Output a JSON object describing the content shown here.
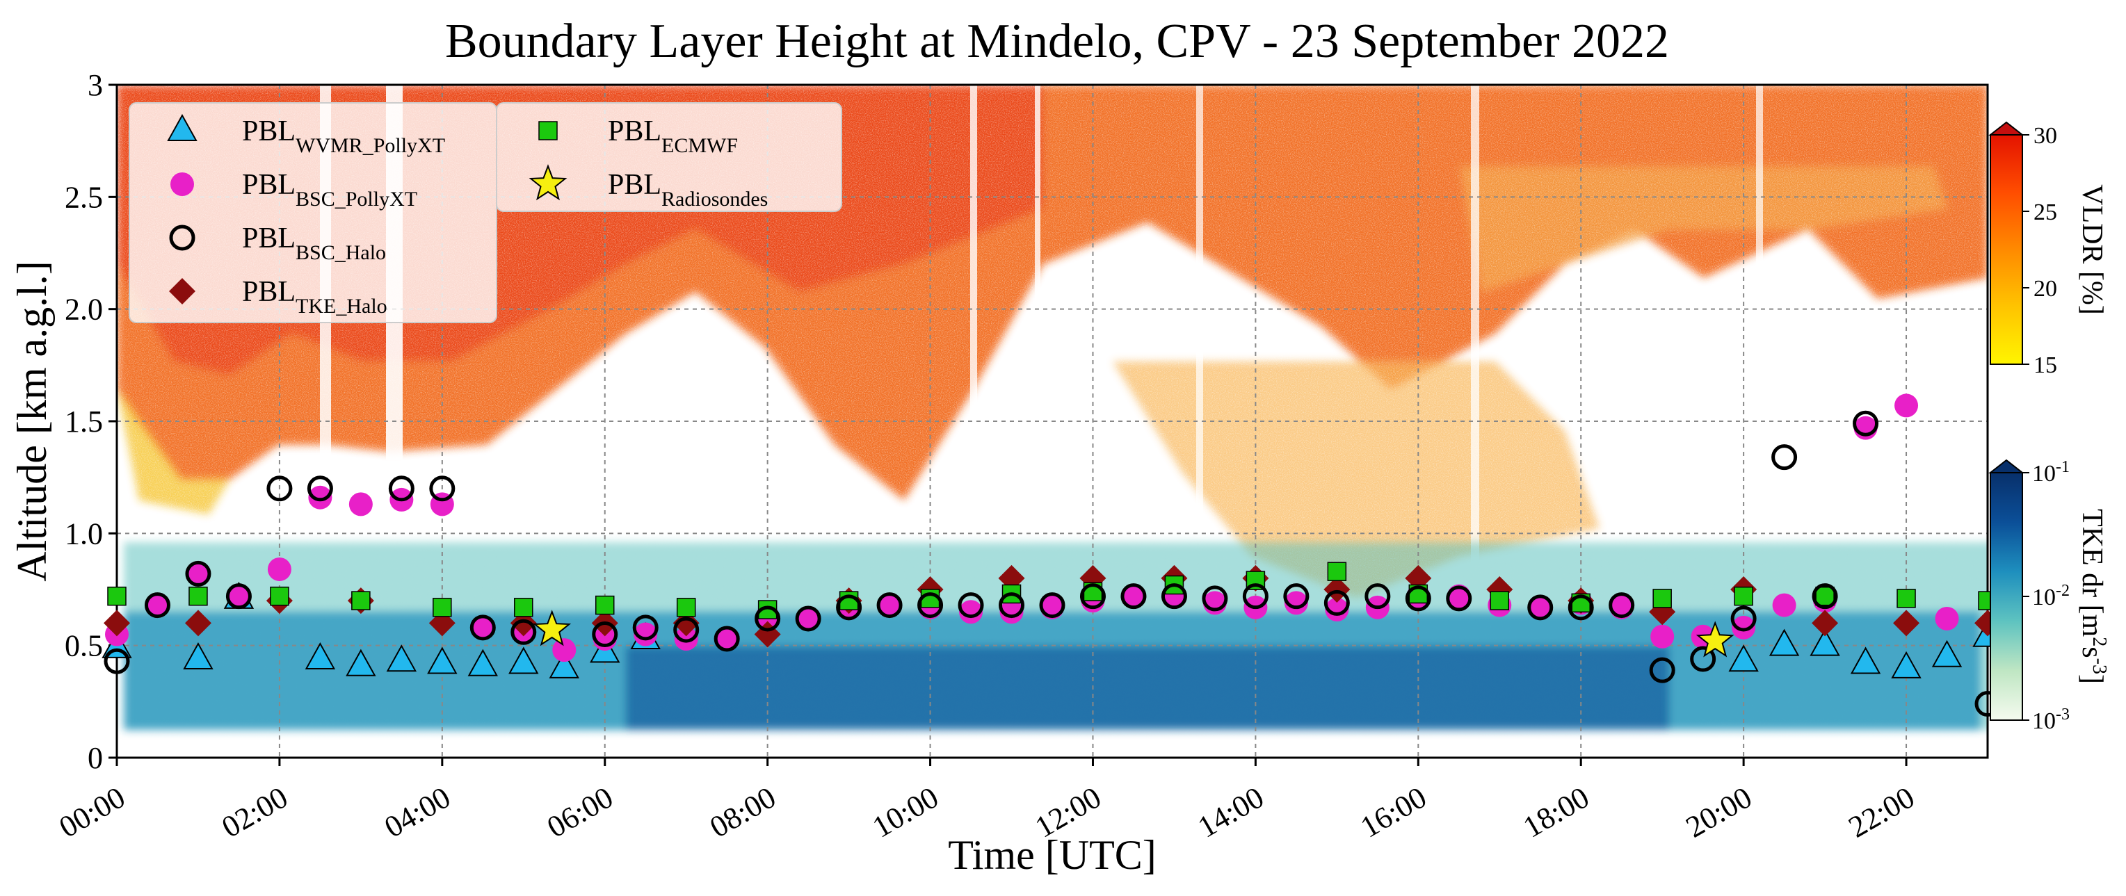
{
  "chart_data": {
    "type": "scatter",
    "title": "Boundary Layer Height at Mindelo, CPV - 23 September 2022",
    "xlabel": "Time [UTC]",
    "ylabel": "Altitude [km a.g.l.]",
    "xlim": [
      0,
      23
    ],
    "ylim": [
      0,
      3
    ],
    "grid": true,
    "x_ticks": [
      {
        "v": 0,
        "label": "00:00"
      },
      {
        "v": 2,
        "label": "02:00"
      },
      {
        "v": 4,
        "label": "04:00"
      },
      {
        "v": 6,
        "label": "06:00"
      },
      {
        "v": 8,
        "label": "08:00"
      },
      {
        "v": 10,
        "label": "10:00"
      },
      {
        "v": 12,
        "label": "12:00"
      },
      {
        "v": 14,
        "label": "14:00"
      },
      {
        "v": 16,
        "label": "16:00"
      },
      {
        "v": 18,
        "label": "18:00"
      },
      {
        "v": 20,
        "label": "20:00"
      },
      {
        "v": 22,
        "label": "22:00"
      }
    ],
    "y_ticks": [
      {
        "v": 0,
        "label": "0"
      },
      {
        "v": 0.5,
        "label": "0.5"
      },
      {
        "v": 1.0,
        "label": "1.0"
      },
      {
        "v": 1.5,
        "label": "1.5"
      },
      {
        "v": 2.0,
        "label": "2.0"
      },
      {
        "v": 2.5,
        "label": "2.5"
      },
      {
        "v": 3.0,
        "label": "3"
      }
    ],
    "legend_position": "top-left",
    "series": [
      {
        "key": "wvmr",
        "main": "PBL",
        "sub": "WVMR_PollyXT",
        "marker": "triangle",
        "color": "#22b8ee",
        "x": [
          0,
          1,
          1.5,
          2.5,
          3,
          3.5,
          4,
          4.5,
          5,
          5.5,
          6,
          6.5,
          20,
          20.5,
          21,
          21.5,
          22,
          22.5,
          23
        ],
        "y": [
          0.49,
          0.44,
          0.71,
          0.44,
          0.41,
          0.43,
          0.42,
          0.41,
          0.42,
          0.4,
          0.47,
          0.53,
          0.43,
          0.5,
          0.5,
          0.42,
          0.4,
          0.45,
          0.54
        ]
      },
      {
        "key": "bsc_polly",
        "main": "PBL",
        "sub": "BSC_PollyXT",
        "marker": "circle",
        "color": "#e820c8",
        "x": [
          0,
          0.5,
          1,
          1.5,
          2,
          2.5,
          3,
          3.5,
          4,
          4.5,
          5,
          5.5,
          6,
          6.5,
          7,
          7.5,
          8,
          8.5,
          9,
          9.5,
          10,
          10.5,
          11,
          11.5,
          12,
          12.5,
          13,
          13.5,
          14,
          14.5,
          15,
          15.5,
          16,
          16.5,
          17,
          17.5,
          18,
          18.5,
          19,
          19.5,
          20,
          20.5,
          21,
          21.5,
          22,
          22.5
        ],
        "y": [
          0.55,
          0.68,
          0.82,
          0.72,
          0.84,
          1.16,
          1.13,
          1.15,
          1.13,
          0.58,
          0.57,
          0.48,
          0.53,
          0.55,
          0.53,
          0.53,
          0.63,
          0.62,
          0.67,
          0.68,
          0.67,
          0.65,
          0.65,
          0.67,
          0.7,
          0.72,
          0.72,
          0.69,
          0.67,
          0.69,
          0.66,
          0.67,
          0.72,
          0.72,
          0.68,
          0.67,
          0.69,
          0.67,
          0.54,
          0.54,
          0.58,
          0.68,
          0.7,
          1.47,
          1.57,
          0.62
        ]
      },
      {
        "key": "bsc_halo",
        "main": "PBL",
        "sub": "BSC_Halo",
        "marker": "open-circle",
        "color": "#000000",
        "x": [
          0,
          0.5,
          1,
          1.5,
          2,
          2.5,
          3.5,
          4,
          4.5,
          5,
          6,
          6.5,
          7,
          7.5,
          8,
          8.5,
          9,
          9.5,
          10,
          10.5,
          11,
          11.5,
          12,
          12.5,
          13,
          13.5,
          14,
          14.5,
          15,
          15.5,
          16,
          16.5,
          17.5,
          18,
          18.5,
          19,
          19.5,
          20,
          20.5,
          21,
          21.5,
          23
        ],
        "y": [
          0.43,
          0.68,
          0.82,
          0.72,
          1.2,
          1.2,
          1.2,
          1.2,
          0.58,
          0.56,
          0.55,
          0.58,
          0.57,
          0.53,
          0.62,
          0.62,
          0.67,
          0.68,
          0.68,
          0.68,
          0.68,
          0.68,
          0.72,
          0.72,
          0.72,
          0.71,
          0.72,
          0.72,
          0.69,
          0.72,
          0.71,
          0.71,
          0.67,
          0.67,
          0.68,
          0.39,
          0.44,
          0.62,
          1.34,
          0.72,
          1.49,
          0.24
        ]
      },
      {
        "key": "tke_halo",
        "main": "PBL",
        "sub": "TKE_Halo",
        "marker": "diamond",
        "color": "#8b0d0d",
        "x": [
          0,
          1,
          2,
          3,
          4,
          5,
          6,
          7,
          8,
          9,
          10,
          11,
          12,
          13,
          14,
          15,
          16,
          17,
          18,
          19,
          20,
          21,
          22,
          23
        ],
        "y": [
          0.6,
          0.6,
          0.7,
          0.7,
          0.6,
          0.6,
          0.6,
          0.6,
          0.55,
          0.7,
          0.75,
          0.8,
          0.8,
          0.8,
          0.8,
          0.75,
          0.8,
          0.75,
          0.7,
          0.65,
          0.75,
          0.6,
          0.6,
          0.6
        ]
      },
      {
        "key": "ecmwf",
        "main": "PBL",
        "sub": "ECMWF",
        "marker": "square",
        "color": "#1bc80e",
        "x": [
          0,
          1,
          2,
          3,
          4,
          5,
          6,
          7,
          8,
          9,
          10,
          11,
          12,
          13,
          14,
          15,
          16,
          17,
          18,
          19,
          20,
          21,
          22,
          23
        ],
        "y": [
          0.72,
          0.72,
          0.72,
          0.7,
          0.67,
          0.67,
          0.68,
          0.67,
          0.66,
          0.7,
          0.71,
          0.73,
          0.74,
          0.77,
          0.79,
          0.83,
          0.73,
          0.7,
          0.69,
          0.71,
          0.72,
          0.72,
          0.71,
          0.7
        ]
      },
      {
        "key": "radiosondes",
        "main": "PBL",
        "sub": "Radiosondes",
        "marker": "star",
        "color": "#f6ef10",
        "x": [
          5.35,
          19.65
        ],
        "y": [
          0.57,
          0.52
        ]
      }
    ],
    "colorbars": [
      {
        "label": "VLDR [%]",
        "range": [
          15,
          30
        ],
        "ticks": [
          {
            "v": 15,
            "label": "15"
          },
          {
            "v": 20,
            "label": "20"
          },
          {
            "v": 25,
            "label": "25"
          },
          {
            "v": 30,
            "label": "30"
          }
        ],
        "colors": [
          "#fff500",
          "#ffc400",
          "#ff8a00",
          "#ff4d00",
          "#e41300"
        ]
      },
      {
        "label_main": "TKE dr [m",
        "label_sup1": "2",
        "label_mid": "s",
        "label_sup2": "-3",
        "label_end": "]",
        "scale": "log",
        "range": [
          0.001,
          0.1
        ],
        "ticks": [
          {
            "base": "10",
            "exp": "-3"
          },
          {
            "base": "10",
            "exp": "-2"
          },
          {
            "base": "10",
            "exp": "-1"
          }
        ],
        "colors": [
          "#f5fbef",
          "#bfe6c3",
          "#5ec3c0",
          "#1e8fbe",
          "#0b4f98",
          "#08306b"
        ]
      }
    ]
  }
}
